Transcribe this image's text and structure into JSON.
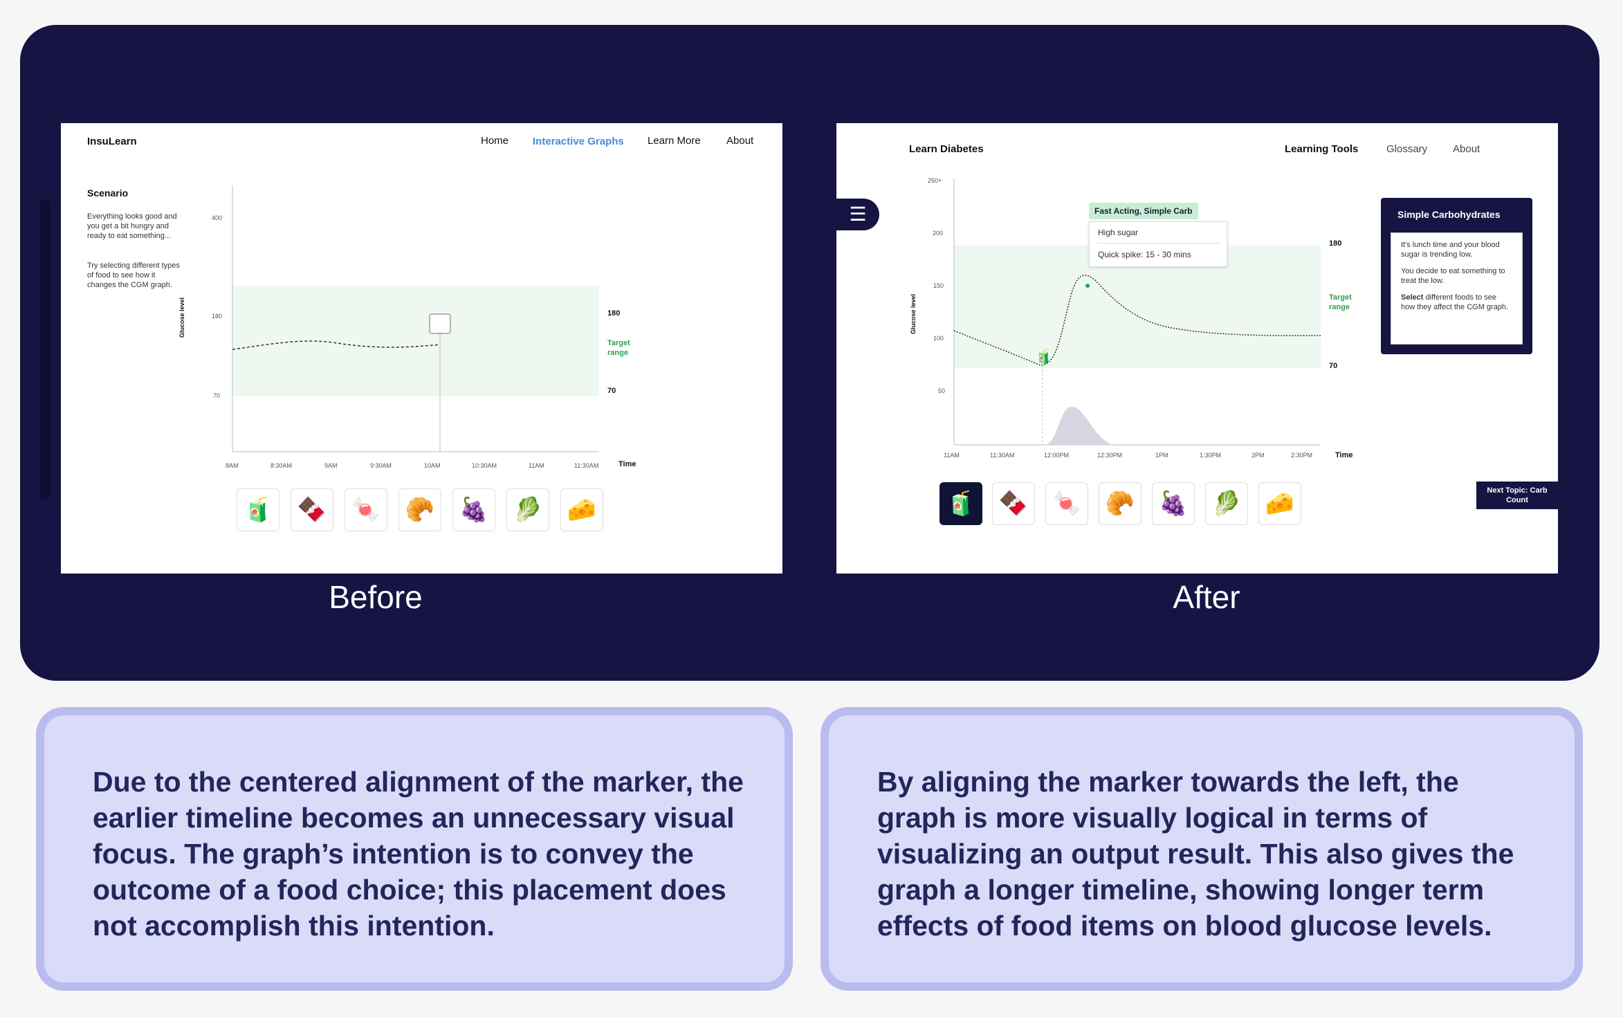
{
  "before": {
    "nav": {
      "brand": "InsuLearn",
      "items": [
        "Home",
        "Interactive Graphs",
        "Learn More",
        "About"
      ]
    },
    "scenario": {
      "title": "Scenario",
      "p1": "Everything looks good and you get a bit hungry and ready to eat something...",
      "p2": "Try selecting different types of food to see how it changes the CGM graph."
    },
    "y_ticks": [
      "400",
      "180",
      "70"
    ],
    "y_axis_label": "Glucose level",
    "x_ticks": [
      "8AM",
      "8:30AM",
      "9AM",
      "9:30AM",
      "10AM",
      "10:30AM",
      "11AM",
      "11:30AM"
    ],
    "x_axis_label": "Time",
    "right_labels": {
      "high": "180",
      "target": "Target range",
      "low": "70"
    },
    "foods": [
      "🧃",
      "🍫",
      "🍬",
      "🥐",
      "🍇",
      "🥬",
      "🧀"
    ],
    "caption": "Before"
  },
  "after": {
    "nav": {
      "brand": "Learn Diabetes",
      "items": [
        "Learning Tools",
        "Glossary",
        "About"
      ]
    },
    "menu_icon": "hamburger-icon",
    "y_ticks": [
      "250+",
      "200",
      "150",
      "100",
      "50"
    ],
    "y_axis_label": "Glucose level",
    "x_ticks": [
      "11AM",
      "11:30AM",
      "12:00PM",
      "12:30PM",
      "1PM",
      "1:30PM",
      "2PM",
      "2:30PM"
    ],
    "x_axis_label": "Time",
    "right_labels": {
      "high": "180",
      "target": "Target range",
      "low": "70"
    },
    "tooltip": {
      "title": "Fast Acting, Simple Carb",
      "line1": "High sugar",
      "line2": "Quick spike: 15 - 30 mins"
    },
    "panel": {
      "title": "Simple Carbohydrates",
      "p1": "It's lunch time and your blood sugar is trending low.",
      "p2": "You decide to eat something to treat the low.",
      "p3_bold": "Select",
      "p3_rest": " different foods to see how they affect the CGM graph."
    },
    "foods": [
      "🧃",
      "🍫",
      "🍬",
      "🥐",
      "🍇",
      "🥬",
      "🧀"
    ],
    "next_button": "Next Topic: Carb Count",
    "caption": "After"
  },
  "cards": {
    "left": "Due to the centered alignment of the marker, the earlier timeline becomes an unnecessary visual focus. The graph’s intention is to convey the outcome of a food choice; this placement does not accomplish this intention.",
    "right": "By aligning the marker towards the left, the graph is more visually logical in terms of visualizing an output result. This also gives the graph a longer timeline, showing longer term effects of food items on blood glucose levels."
  }
}
